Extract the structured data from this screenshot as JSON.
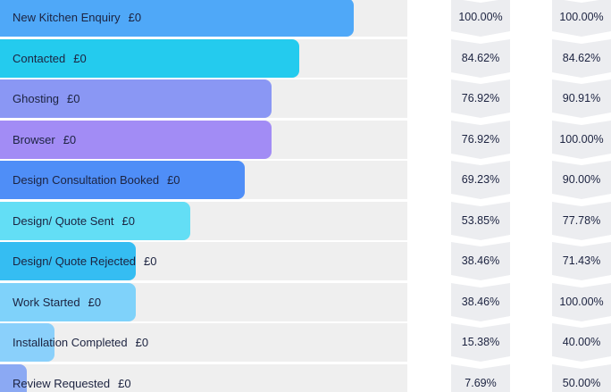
{
  "stages": [
    {
      "name": "New Kitchen Enquiry",
      "amount": "£0",
      "overall_pct": "100.00%",
      "step_pct": "100.00%",
      "fill": 0.8684,
      "color": "#4fa8f8"
    },
    {
      "name": "Contacted",
      "amount": "£0",
      "overall_pct": "84.62%",
      "step_pct": "84.62%",
      "fill": 0.7346,
      "color": "#24cbee"
    },
    {
      "name": "Ghosting",
      "amount": "£0",
      "overall_pct": "76.92%",
      "step_pct": "90.91%",
      "fill": 0.6667,
      "color": "#8a97f4"
    },
    {
      "name": "Browser",
      "amount": "£0",
      "overall_pct": "76.92%",
      "step_pct": "100.00%",
      "fill": 0.6667,
      "color": "#a28cf5"
    },
    {
      "name": "Design Consultation Booked",
      "amount": "£0",
      "overall_pct": "69.23%",
      "step_pct": "90.00%",
      "fill": 0.6009,
      "color": "#4f8ef7"
    },
    {
      "name": "Design/ Quote Sent",
      "amount": "£0",
      "overall_pct": "53.85%",
      "step_pct": "77.78%",
      "fill": 0.4671,
      "color": "#63def5"
    },
    {
      "name": "Design/ Quote Rejected",
      "amount": "£0",
      "overall_pct": "38.46%",
      "step_pct": "71.43%",
      "fill": 0.3333,
      "color": "#35bdf2"
    },
    {
      "name": "Work Started",
      "amount": "£0",
      "overall_pct": "38.46%",
      "step_pct": "100.00%",
      "fill": 0.3333,
      "color": "#7fd2fa"
    },
    {
      "name": "Installation Completed",
      "amount": "£0",
      "overall_pct": "15.38%",
      "step_pct": "40.00%",
      "fill": 0.1338,
      "color": "#8ad0fb"
    },
    {
      "name": "Review Requested",
      "amount": "£0",
      "overall_pct": "7.69%",
      "step_pct": "50.00%",
      "fill": 0.0658,
      "color": "#8ba9f3"
    }
  ]
}
